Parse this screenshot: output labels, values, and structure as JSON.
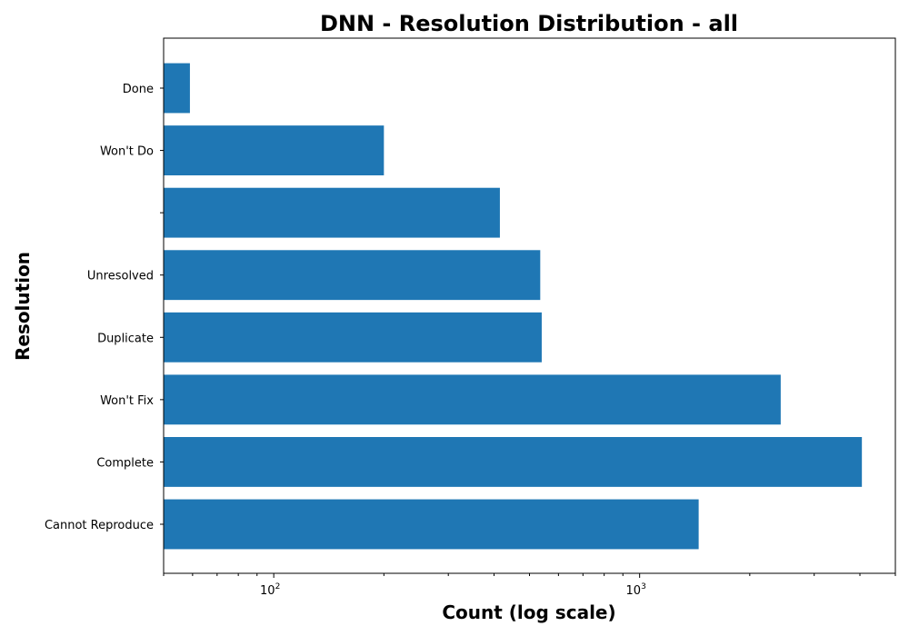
{
  "chart_data": {
    "type": "bar",
    "orientation": "horizontal",
    "title": "DNN - Resolution Distribution - all",
    "xlabel": "Count (log scale)",
    "ylabel": "Resolution",
    "x_scale": "log",
    "xlim": [
      50,
      5000
    ],
    "x_tick_labels": [
      {
        "value": 100,
        "base": "10",
        "exp": "2"
      },
      {
        "value": 1000,
        "base": "10",
        "exp": "3"
      }
    ],
    "categories": [
      "Done",
      "Won't Do",
      "",
      "Unresolved",
      "Duplicate",
      "Won't Fix",
      "Complete",
      "Cannot Reproduce"
    ],
    "values": [
      59,
      200,
      415,
      535,
      540,
      2430,
      4050,
      1450
    ],
    "bar_color": "#1f77b4",
    "grid": false,
    "legend": "none"
  }
}
